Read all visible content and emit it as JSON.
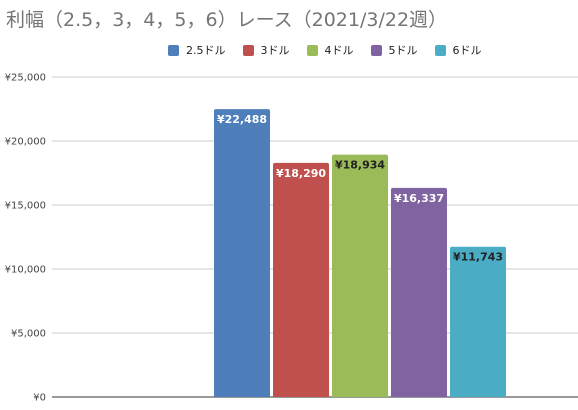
{
  "chart_data": {
    "type": "bar",
    "title": "利幅（2.5，3，4，5，6）レース（2021/3/22週）",
    "xlabel": "",
    "ylabel": "",
    "categories": [
      ""
    ],
    "series": [
      {
        "name": "2.5ドル",
        "values": [
          22488
        ],
        "label": "¥22,488",
        "color": "#4e7fbb",
        "label_color": "#ffffff"
      },
      {
        "name": "3ドル",
        "values": [
          18290
        ],
        "label": "¥18,290",
        "color": "#c0504d",
        "label_color": "#ffffff"
      },
      {
        "name": "4ドル",
        "values": [
          18934
        ],
        "label": "¥18,934",
        "color": "#9bbb59",
        "label_color": "#222222"
      },
      {
        "name": "5ドル",
        "values": [
          16337
        ],
        "label": "¥16,337",
        "color": "#8064a2",
        "label_color": "#ffffff"
      },
      {
        "name": "6ドル",
        "values": [
          11743
        ],
        "label": "¥11,743",
        "color": "#4bacc6",
        "label_color": "#222222"
      }
    ],
    "ylim": [
      0,
      25000
    ],
    "yticks": [
      {
        "value": 0,
        "label": "¥0"
      },
      {
        "value": 5000,
        "label": "¥5,000"
      },
      {
        "value": 10000,
        "label": "¥10,000"
      },
      {
        "value": 15000,
        "label": "¥15,000"
      },
      {
        "value": 20000,
        "label": "¥20,000"
      },
      {
        "value": 25000,
        "label": "¥25,000"
      }
    ],
    "grid": true,
    "legend_position": "top"
  }
}
